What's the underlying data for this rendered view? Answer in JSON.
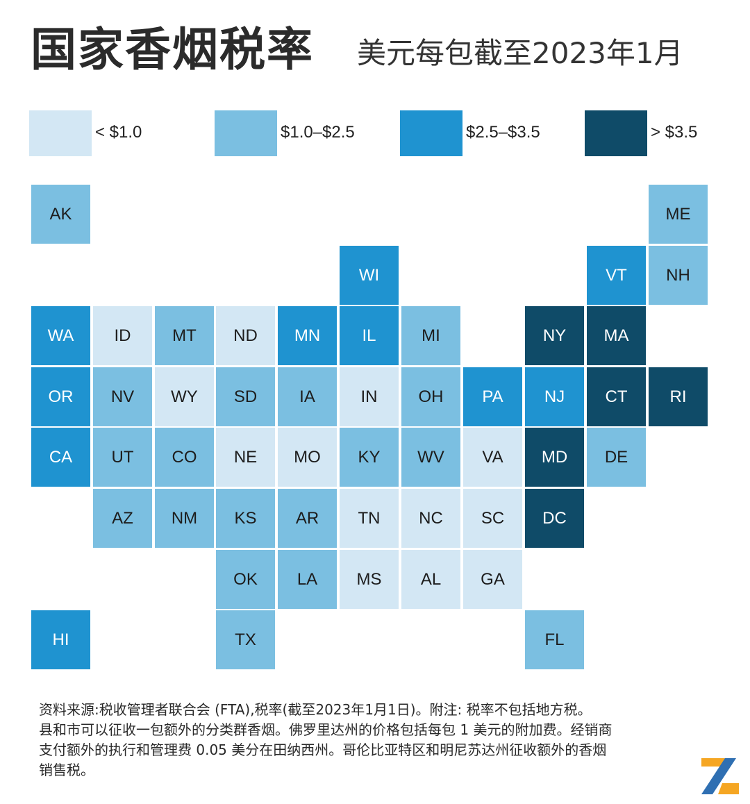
{
  "header": {
    "title": "国家香烟税率",
    "subtitle": "美元每包截至2023年1月"
  },
  "legend": [
    {
      "label": "< $1.0",
      "tier": 0
    },
    {
      "label": "$1.0–$2.5",
      "tier": 1
    },
    {
      "label": "$2.5–$3.5",
      "tier": 2
    },
    {
      "label": "> $3.5",
      "tier": 3
    }
  ],
  "colors": {
    "tier0": "#d3e7f4",
    "tier1": "#7bbfe1",
    "tier2": "#1f93d0",
    "tier3": "#0f4b68"
  },
  "states": [
    {
      "code": "AK",
      "tier": 1
    },
    {
      "code": "ME",
      "tier": 1
    },
    {
      "code": "WI",
      "tier": 2
    },
    {
      "code": "VT",
      "tier": 2
    },
    {
      "code": "NH",
      "tier": 1
    },
    {
      "code": "WA",
      "tier": 2
    },
    {
      "code": "ID",
      "tier": 0
    },
    {
      "code": "MT",
      "tier": 1
    },
    {
      "code": "ND",
      "tier": 0
    },
    {
      "code": "MN",
      "tier": 2
    },
    {
      "code": "IL",
      "tier": 2
    },
    {
      "code": "MI",
      "tier": 1
    },
    {
      "code": "NY",
      "tier": 3
    },
    {
      "code": "MA",
      "tier": 3
    },
    {
      "code": "OR",
      "tier": 2
    },
    {
      "code": "NV",
      "tier": 1
    },
    {
      "code": "WY",
      "tier": 0
    },
    {
      "code": "SD",
      "tier": 1
    },
    {
      "code": "IA",
      "tier": 1
    },
    {
      "code": "IN",
      "tier": 0
    },
    {
      "code": "OH",
      "tier": 1
    },
    {
      "code": "PA",
      "tier": 2
    },
    {
      "code": "NJ",
      "tier": 2
    },
    {
      "code": "CT",
      "tier": 3
    },
    {
      "code": "RI",
      "tier": 3
    },
    {
      "code": "CA",
      "tier": 2
    },
    {
      "code": "UT",
      "tier": 1
    },
    {
      "code": "CO",
      "tier": 1
    },
    {
      "code": "NE",
      "tier": 0
    },
    {
      "code": "MO",
      "tier": 0
    },
    {
      "code": "KY",
      "tier": 1
    },
    {
      "code": "WV",
      "tier": 1
    },
    {
      "code": "VA",
      "tier": 0
    },
    {
      "code": "MD",
      "tier": 3
    },
    {
      "code": "DE",
      "tier": 1
    },
    {
      "code": "AZ",
      "tier": 1
    },
    {
      "code": "NM",
      "tier": 1
    },
    {
      "code": "KS",
      "tier": 1
    },
    {
      "code": "AR",
      "tier": 1
    },
    {
      "code": "TN",
      "tier": 0
    },
    {
      "code": "NC",
      "tier": 0
    },
    {
      "code": "SC",
      "tier": 0
    },
    {
      "code": "DC",
      "tier": 3
    },
    {
      "code": "OK",
      "tier": 1
    },
    {
      "code": "LA",
      "tier": 1
    },
    {
      "code": "MS",
      "tier": 0
    },
    {
      "code": "AL",
      "tier": 0
    },
    {
      "code": "GA",
      "tier": 0
    },
    {
      "code": "HI",
      "tier": 2
    },
    {
      "code": "TX",
      "tier": 1
    },
    {
      "code": "FL",
      "tier": 1
    }
  ],
  "footer": {
    "note": "资料来源:税收管理者联合会 (FTA),税率(截至2023年1月1日)。附注: 税率不包括地方税。\n县和市可以征收一包额外的分类群香烟。佛罗里达州的价格包括每包 1 美元的附加费。经销商\n支付额外的执行和管理费 0.05 美分在田纳西州。哥伦比亚特区和明尼苏达州征收额外的香烟\n销售税。"
  },
  "logo": {
    "icon": "brand-logo-icon"
  }
}
